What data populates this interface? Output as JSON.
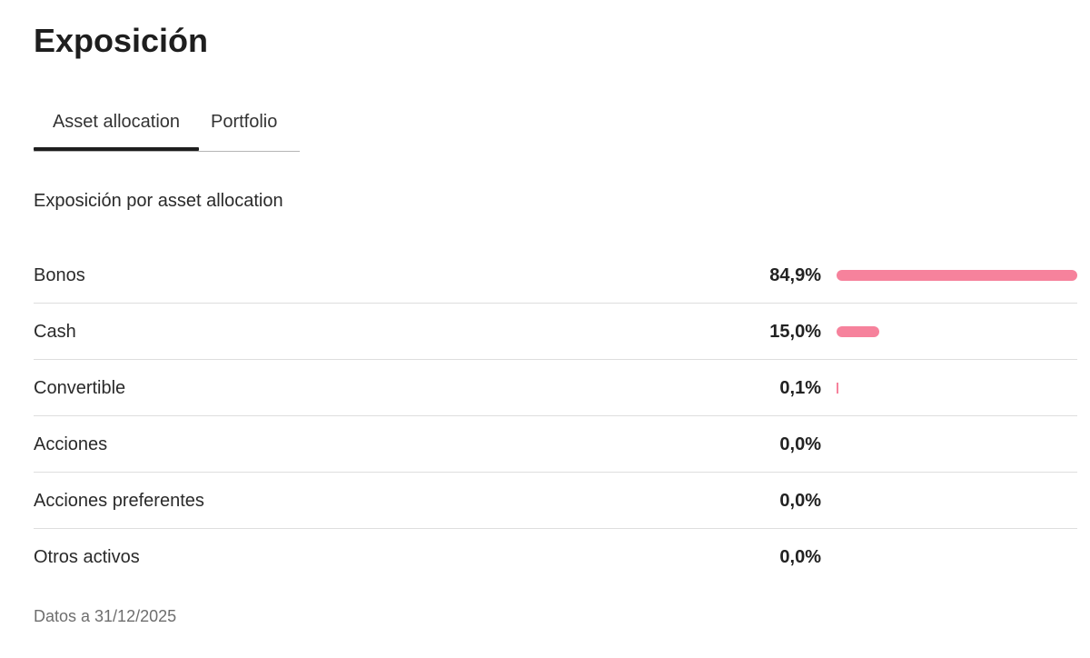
{
  "title": "Exposición",
  "tabs": [
    {
      "label": "Asset allocation",
      "active": true
    },
    {
      "label": "Portfolio",
      "active": false
    }
  ],
  "subtitle": "Exposición por asset allocation",
  "bar_color": "#f6829c",
  "rows": [
    {
      "label": "Bonos",
      "value_text": "84,9%",
      "value": 84.9
    },
    {
      "label": "Cash",
      "value_text": "15,0%",
      "value": 15.0
    },
    {
      "label": "Convertible",
      "value_text": "0,1%",
      "value": 0.1
    },
    {
      "label": "Acciones",
      "value_text": "0,0%",
      "value": 0.0
    },
    {
      "label": "Acciones preferentes",
      "value_text": "0,0%",
      "value": 0.0
    },
    {
      "label": "Otros activos",
      "value_text": "0,0%",
      "value": 0.0
    }
  ],
  "footnote": "Datos a 31/12/2025"
}
